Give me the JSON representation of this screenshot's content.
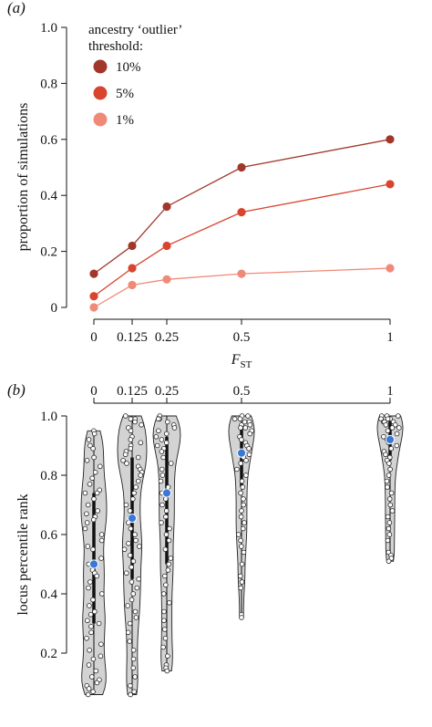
{
  "chart_data": [
    {
      "panel_label": "(a)",
      "type": "line",
      "x": [
        0,
        0.125,
        0.25,
        0.5,
        1
      ],
      "x_tick_labels": [
        "0",
        "0.125",
        "0.25",
        "0.5",
        "1"
      ],
      "xlabel": "F",
      "xlabel_sub": "ST",
      "ylabel": "proportion of simulations",
      "ylim": [
        0,
        1.0
      ],
      "y_ticks": [
        0,
        0.2,
        0.4,
        0.6,
        0.8,
        1.0
      ],
      "y_tick_labels": [
        "0",
        "0.2",
        "0.4",
        "0.6",
        "0.8",
        "1.0"
      ],
      "legend_title_line1": "ancestry ‘outlier’",
      "legend_title_line2": "threshold:",
      "legend_position": "top-left",
      "series": [
        {
          "name": "10%",
          "color": "#a0372a",
          "values": [
            0.12,
            0.22,
            0.36,
            0.5,
            0.6
          ]
        },
        {
          "name": "5%",
          "color": "#d9442f",
          "values": [
            0.04,
            0.14,
            0.22,
            0.34,
            0.44
          ]
        },
        {
          "name": "1%",
          "color": "#f08a78",
          "values": [
            0.0,
            0.08,
            0.1,
            0.12,
            0.14
          ]
        }
      ],
      "grid": false
    },
    {
      "panel_label": "(b)",
      "type": "violin",
      "x": [
        0,
        0.125,
        0.25,
        0.5,
        1
      ],
      "x_tick_labels": [
        "0",
        "0.125",
        "0.25",
        "0.5",
        "1"
      ],
      "x_axis_position": "top",
      "ylabel": "locus percentile rank",
      "ylim": [
        0.05,
        1.0
      ],
      "y_ticks": [
        0.2,
        0.4,
        0.6,
        0.8,
        1.0
      ],
      "y_tick_labels": [
        "0.2",
        "0.4",
        "0.6",
        "0.8",
        "1.0"
      ],
      "violin_fill": "#d3d3d3",
      "median_color": "#3a78d8",
      "groups": [
        {
          "x": 0,
          "median": 0.5,
          "min": 0.06,
          "max": 0.95,
          "q1": 0.3,
          "q3": 0.74,
          "points": [
            0.95,
            0.94,
            0.92,
            0.9,
            0.89,
            0.86,
            0.85,
            0.83,
            0.81,
            0.79,
            0.77,
            0.75,
            0.74,
            0.74,
            0.72,
            0.7,
            0.68,
            0.67,
            0.66,
            0.65,
            0.64,
            0.62,
            0.6,
            0.58,
            0.56,
            0.55,
            0.52,
            0.5,
            0.48,
            0.47,
            0.46,
            0.44,
            0.42,
            0.4,
            0.38,
            0.36,
            0.34,
            0.33,
            0.31,
            0.3,
            0.29,
            0.27,
            0.25,
            0.23,
            0.21,
            0.19,
            0.18,
            0.16,
            0.14,
            0.12,
            0.11,
            0.1,
            0.09,
            0.08,
            0.07,
            0.06
          ]
        },
        {
          "x": 0.125,
          "median": 0.655,
          "min": 0.06,
          "max": 1.0,
          "q1": 0.45,
          "q3": 0.86,
          "points": [
            1.0,
            0.99,
            0.99,
            0.98,
            0.97,
            0.96,
            0.95,
            0.93,
            0.92,
            0.91,
            0.9,
            0.89,
            0.88,
            0.87,
            0.86,
            0.85,
            0.84,
            0.83,
            0.82,
            0.81,
            0.8,
            0.78,
            0.76,
            0.74,
            0.72,
            0.7,
            0.68,
            0.66,
            0.64,
            0.62,
            0.6,
            0.58,
            0.57,
            0.56,
            0.55,
            0.53,
            0.51,
            0.49,
            0.47,
            0.45,
            0.44,
            0.42,
            0.4,
            0.38,
            0.36,
            0.34,
            0.32,
            0.3,
            0.27,
            0.24,
            0.21,
            0.18,
            0.15,
            0.12,
            0.09,
            0.07,
            0.06
          ]
        },
        {
          "x": 0.25,
          "median": 0.74,
          "min": 0.14,
          "max": 1.0,
          "q1": 0.5,
          "q3": 0.93,
          "points": [
            1.0,
            0.99,
            0.99,
            0.98,
            0.97,
            0.96,
            0.95,
            0.94,
            0.93,
            0.92,
            0.91,
            0.9,
            0.89,
            0.88,
            0.86,
            0.84,
            0.82,
            0.8,
            0.78,
            0.76,
            0.74,
            0.72,
            0.7,
            0.68,
            0.66,
            0.64,
            0.62,
            0.6,
            0.58,
            0.55,
            0.52,
            0.5,
            0.48,
            0.46,
            0.43,
            0.4,
            0.37,
            0.34,
            0.31,
            0.28,
            0.25,
            0.22,
            0.19,
            0.16,
            0.15,
            0.14
          ]
        },
        {
          "x": 0.5,
          "median": 0.875,
          "min": 0.32,
          "max": 1.0,
          "q1": 0.76,
          "q3": 0.97,
          "points": [
            1.0,
            1.0,
            0.99,
            0.99,
            0.98,
            0.98,
            0.97,
            0.97,
            0.96,
            0.96,
            0.95,
            0.94,
            0.93,
            0.92,
            0.91,
            0.9,
            0.89,
            0.88,
            0.87,
            0.86,
            0.85,
            0.84,
            0.82,
            0.8,
            0.78,
            0.76,
            0.74,
            0.72,
            0.7,
            0.68,
            0.66,
            0.64,
            0.62,
            0.6,
            0.58,
            0.56,
            0.54,
            0.5,
            0.46,
            0.44,
            0.42,
            0.33,
            0.32
          ]
        },
        {
          "x": 1,
          "median": 0.92,
          "min": 0.51,
          "max": 1.0,
          "q1": 0.85,
          "q3": 0.99,
          "points": [
            1.0,
            1.0,
            1.0,
            0.99,
            0.99,
            0.99,
            0.98,
            0.98,
            0.98,
            0.97,
            0.97,
            0.96,
            0.96,
            0.95,
            0.94,
            0.93,
            0.92,
            0.91,
            0.9,
            0.89,
            0.88,
            0.87,
            0.86,
            0.85,
            0.84,
            0.82,
            0.8,
            0.78,
            0.76,
            0.74,
            0.72,
            0.7,
            0.68,
            0.66,
            0.64,
            0.62,
            0.6,
            0.58,
            0.54,
            0.53,
            0.52,
            0.51
          ]
        }
      ],
      "grid": false
    }
  ]
}
